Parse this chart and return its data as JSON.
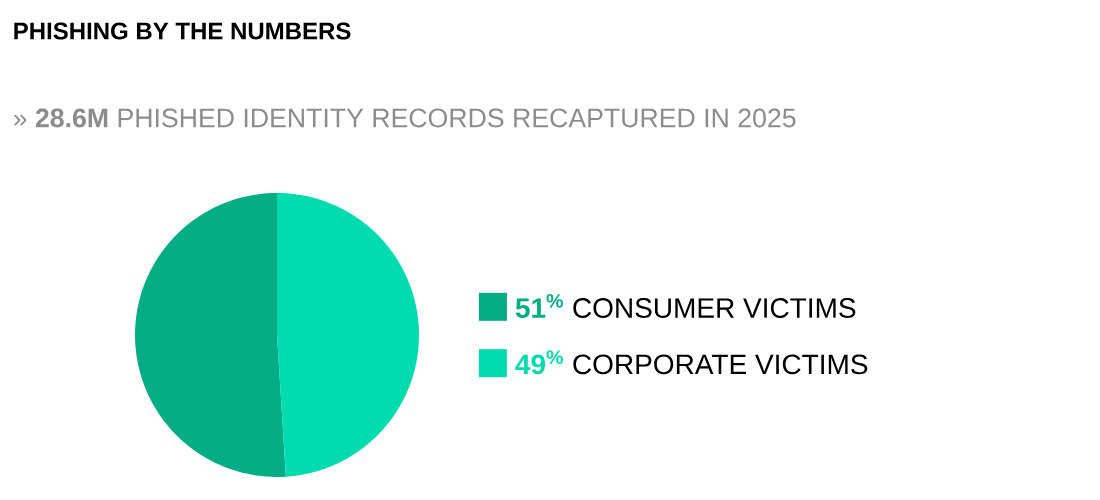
{
  "chart_data": {
    "type": "pie",
    "title": "PHISHING BY THE NUMBERS",
    "subtitle": "» **28.6M** PHISHED IDENTITY RECORDS RECAPTURED IN 2025",
    "categories": [
      "CONSUMER VICTIMS",
      "CORPORATE VICTIMS"
    ],
    "values": [
      51,
      49
    ],
    "colors": [
      "#05ad85",
      "#00dcb0"
    ],
    "value_labels": [
      "51$^{%}$",
      "49$^{%}$"
    ],
    "legend": "right"
  }
}
